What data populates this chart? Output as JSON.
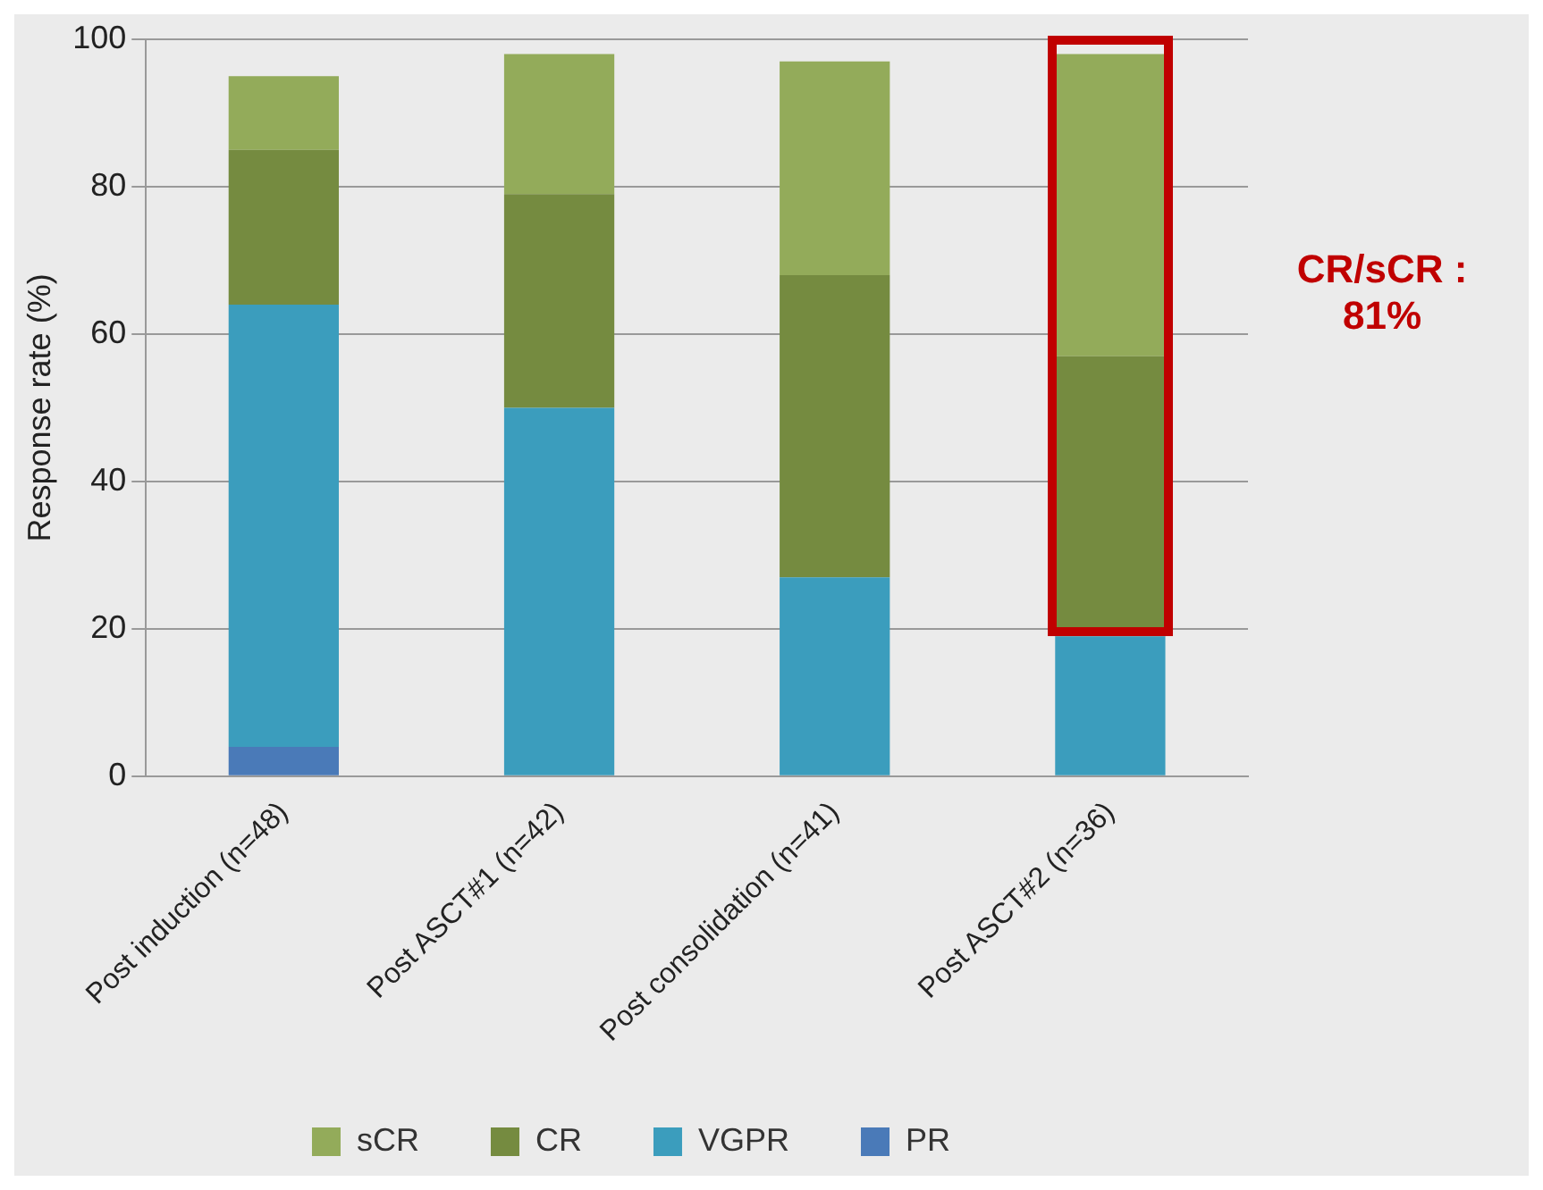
{
  "chart_data": {
    "type": "bar",
    "stacked": true,
    "ylabel": "Response rate (%)",
    "categories": [
      "Post induction (n=48)",
      "Post ASCT#1 (n=42)",
      "Post consolidation (n=41)",
      "Post ASCT#2 (n=36)"
    ],
    "series": [
      {
        "name": "PR",
        "color": "#4a7ab8",
        "values": [
          4,
          0,
          0,
          0
        ]
      },
      {
        "name": "VGPR",
        "color": "#3b9dbd",
        "values": [
          60,
          50,
          27,
          19
        ]
      },
      {
        "name": "CR",
        "color": "#758b40",
        "values": [
          21,
          29,
          41,
          38
        ]
      },
      {
        "name": "sCR",
        "color": "#93ab5a",
        "values": [
          10,
          19,
          29,
          41
        ]
      }
    ],
    "ylim": [
      0,
      100
    ],
    "yticks": [
      0,
      20,
      40,
      60,
      80,
      100
    ],
    "grid": "y",
    "legend": "bottom",
    "annotations": [
      "CR/sCR :\n81%"
    ]
  }
}
